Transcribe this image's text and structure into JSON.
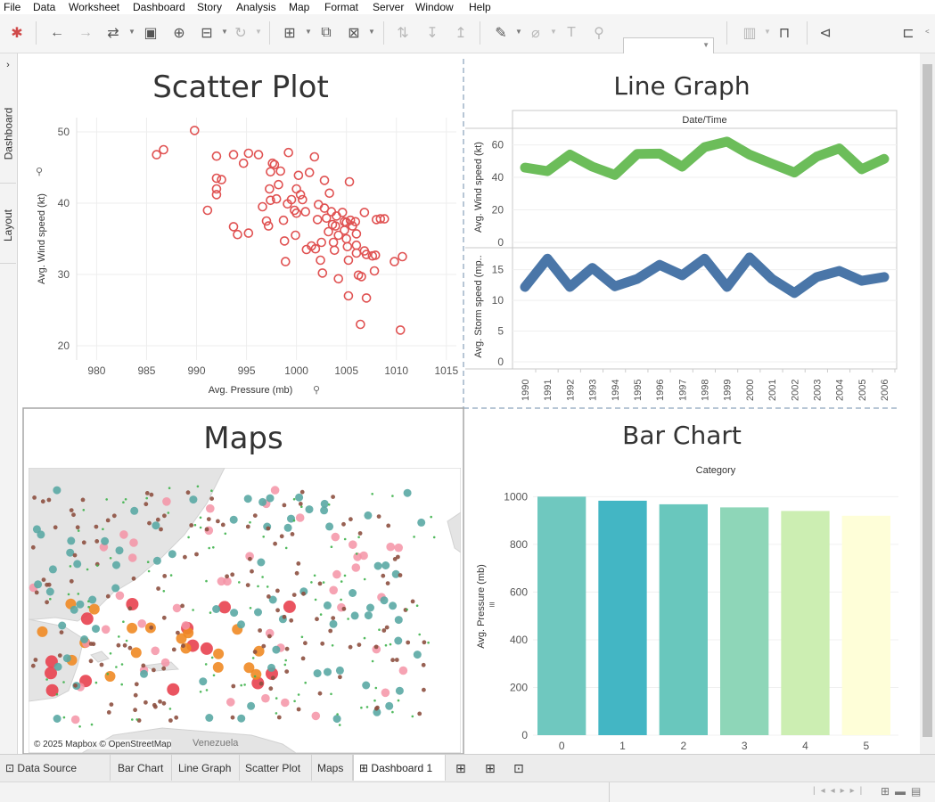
{
  "menu": [
    "File",
    "Data",
    "Worksheet",
    "Dashboard",
    "Story",
    "Analysis",
    "Map",
    "Format",
    "Server",
    "Window",
    "Help"
  ],
  "icons": {
    "show_me": "tableau-logo-icon",
    "undo": "undo-arrow-icon",
    "redo": "redo-arrow-icon",
    "save": "save-icon",
    "add_data": "add-datasource-icon",
    "present": "presentation-icon",
    "share": "share-icon"
  },
  "side_tabs": {
    "dashboard": "Dashboard",
    "layout": "Layout"
  },
  "scatter": {
    "title": "Scatter Plot",
    "xlabel": "Avg. Pressure (mb)",
    "ylabel": "Avg. Wind speed (kt)"
  },
  "line": {
    "title": "Line Graph",
    "header": "Date/Time",
    "ylabel1": "Avg. Wind speed (kt)",
    "ylabel2": "Avg. Storm speed (mp.."
  },
  "maps": {
    "title": "Maps",
    "attribution": "© 2025 Mapbox © OpenStreetMap",
    "place_label": "Venezuela"
  },
  "bar": {
    "title": "Bar Chart",
    "header": "Category",
    "ylabel": "Avg. Pressure (mb)"
  },
  "tabs": {
    "data_source": "Data Source",
    "sheets": [
      "Bar Chart",
      "Line Graph",
      "Scatter Plot",
      "Maps"
    ],
    "active": "Dashboard 1"
  },
  "colors": {
    "scatter_marker": "#e05252",
    "line_wind": "#6cbd5a",
    "line_storm": "#4a76a8",
    "map_land": "#e4e4e4",
    "map_sea": "#ffffff"
  },
  "chart_data": [
    {
      "type": "scatter",
      "title": "Scatter Plot",
      "xlabel": "Avg. Pressure (mb)",
      "ylabel": "Avg. Wind speed (kt)",
      "xlim": [
        978,
        1016
      ],
      "ylim": [
        18,
        52
      ],
      "xticks": [
        980,
        985,
        990,
        995,
        1000,
        1005,
        1010,
        1015
      ],
      "yticks": [
        20,
        30,
        40,
        50
      ],
      "grid": true,
      "points": [
        [
          986,
          46.8
        ],
        [
          986.7,
          47.5
        ],
        [
          989.8,
          50.2
        ],
        [
          991.1,
          39
        ],
        [
          992,
          46.6
        ],
        [
          992,
          43.5
        ],
        [
          992,
          42
        ],
        [
          992,
          41.2
        ],
        [
          992.5,
          43.3
        ],
        [
          993.7,
          46.8
        ],
        [
          993.7,
          36.7
        ],
        [
          994.1,
          35.6
        ],
        [
          994.7,
          45.6
        ],
        [
          995.2,
          47
        ],
        [
          995.2,
          35.8
        ],
        [
          996.2,
          46.8
        ],
        [
          996.6,
          39.5
        ],
        [
          997,
          37.5
        ],
        [
          997.2,
          36.8
        ],
        [
          997.4,
          40.4
        ],
        [
          997.3,
          42
        ],
        [
          997.4,
          44.4
        ],
        [
          997.6,
          45.6
        ],
        [
          997.8,
          45.4
        ],
        [
          998,
          40.6
        ],
        [
          998.2,
          42.6
        ],
        [
          998.4,
          44.5
        ],
        [
          998.7,
          37.6
        ],
        [
          998.8,
          34.7
        ],
        [
          998.9,
          31.8
        ],
        [
          999.2,
          47.1
        ],
        [
          999.1,
          39.9
        ],
        [
          999.5,
          40.5
        ],
        [
          999.8,
          39
        ],
        [
          999.9,
          35.5
        ],
        [
          1000,
          38.6
        ],
        [
          1000,
          42
        ],
        [
          1000.2,
          43.9
        ],
        [
          1000.4,
          41.2
        ],
        [
          1000.6,
          40.5
        ],
        [
          1000.9,
          38.8
        ],
        [
          1001,
          33.5
        ],
        [
          1001.3,
          44.3
        ],
        [
          1001.5,
          34
        ],
        [
          1001.8,
          46.5
        ],
        [
          1001.9,
          33.6
        ],
        [
          1002.1,
          37.7
        ],
        [
          1002.2,
          39.8
        ],
        [
          1002.4,
          32
        ],
        [
          1002.5,
          34.5
        ],
        [
          1002.6,
          30.2
        ],
        [
          1002.8,
          39.3
        ],
        [
          1002.8,
          43.2
        ],
        [
          1003,
          37.9
        ],
        [
          1003.2,
          36
        ],
        [
          1003.3,
          41.4
        ],
        [
          1003.5,
          38.8
        ],
        [
          1003.6,
          37
        ],
        [
          1003.7,
          34.5
        ],
        [
          1003.8,
          33.4
        ],
        [
          1003.9,
          36.8
        ],
        [
          1004,
          38.2
        ],
        [
          1004.2,
          35.5
        ],
        [
          1004.2,
          29.4
        ],
        [
          1004.6,
          38.7
        ],
        [
          1004.8,
          37.4
        ],
        [
          1004.8,
          36.2
        ],
        [
          1005,
          37.3
        ],
        [
          1005,
          35
        ],
        [
          1005.1,
          33.9
        ],
        [
          1005.2,
          32
        ],
        [
          1005.2,
          27
        ],
        [
          1005.3,
          43
        ],
        [
          1005.4,
          37.6
        ],
        [
          1005.6,
          36.8
        ],
        [
          1005.9,
          37.4
        ],
        [
          1006,
          35.7
        ],
        [
          1006,
          34.1
        ],
        [
          1006,
          33
        ],
        [
          1006.2,
          29.9
        ],
        [
          1006.4,
          23
        ],
        [
          1006.5,
          29.7
        ],
        [
          1006.8,
          38.7
        ],
        [
          1006.8,
          33.3
        ],
        [
          1007,
          26.7
        ],
        [
          1007,
          32.8
        ],
        [
          1007.6,
          32.6
        ],
        [
          1007.8,
          30.5
        ],
        [
          1007.9,
          32.7
        ],
        [
          1008,
          37.7
        ],
        [
          1008.4,
          37.8
        ],
        [
          1008.8,
          37.8
        ],
        [
          1009.8,
          31.8
        ],
        [
          1010.4,
          22.2
        ],
        [
          1010.6,
          32.5
        ]
      ]
    },
    {
      "type": "line",
      "title": "Line Graph",
      "x": [
        1990,
        1991,
        1992,
        1993,
        1994,
        1995,
        1996,
        1997,
        1998,
        1999,
        2000,
        2001,
        2002,
        2003,
        2004,
        2005,
        2006
      ],
      "series": [
        {
          "name": "Avg. Wind speed (kt)",
          "values": [
            46,
            43.8,
            54,
            46.6,
            41.5,
            54.4,
            54.6,
            46.6,
            58.6,
            62,
            54,
            48.4,
            43,
            52.8,
            57.8,
            45,
            51.4
          ],
          "ylim": [
            0,
            68
          ],
          "yticks": [
            0,
            20,
            40,
            60
          ]
        },
        {
          "name": "Avg. Storm speed (mp..",
          "values": [
            12.2,
            16.8,
            12.2,
            15.3,
            12.3,
            13.5,
            15.8,
            14.1,
            16.8,
            12.2,
            17,
            13.5,
            11.2,
            13.8,
            14.8,
            13.2,
            13.8
          ],
          "ylim": [
            0,
            18
          ],
          "yticks": [
            0,
            5,
            10,
            15
          ]
        }
      ]
    },
    {
      "type": "map",
      "title": "Maps",
      "marker_categories": [
        {
          "color": "#e8414f",
          "size": "largest"
        },
        {
          "color": "#f08a24",
          "size": "large"
        },
        {
          "color": "#f593a6",
          "size": "medium"
        },
        {
          "color": "#5aa9a4",
          "size": "medium"
        },
        {
          "color": "#8d5040",
          "size": "small"
        },
        {
          "color": "#3fb24d",
          "size": "tiny"
        }
      ]
    },
    {
      "type": "bar",
      "title": "Bar Chart",
      "header": "Category",
      "categories": [
        "0",
        "1",
        "2",
        "3",
        "4",
        "5"
      ],
      "values": [
        1000,
        983,
        968,
        955,
        940,
        920
      ],
      "ylabel": "Avg. Pressure (mb)",
      "ylim": [
        0,
        1020
      ],
      "yticks": [
        0,
        200,
        400,
        600,
        800,
        1000
      ],
      "colors": [
        "#6fc8bf",
        "#43b6c4",
        "#69c7bd",
        "#8ed6b8",
        "#cceeb2",
        "#fefed8"
      ]
    }
  ]
}
